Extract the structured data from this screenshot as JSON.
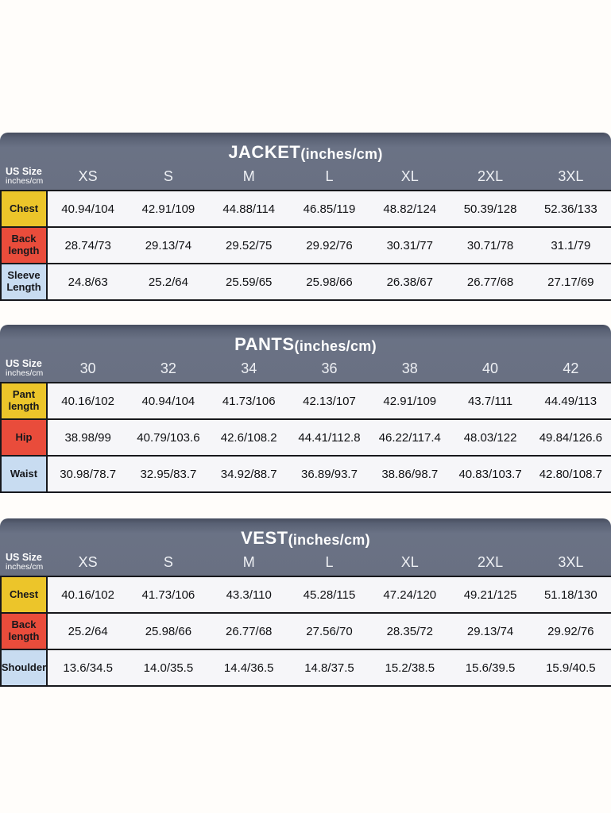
{
  "page": {
    "background": "#FFFDFA"
  },
  "palette": {
    "header_slate": "#6A7183",
    "header_rim": "#474E5F",
    "header_text": "#FFFFFF",
    "row_label_yellow": "#ECC52A",
    "row_label_red": "#E94C3B",
    "row_label_blue": "#C8DCF1",
    "cell_background": "#F6F6F9",
    "grid_line": "#17181C",
    "cell_text": "#101114"
  },
  "tables": [
    {
      "name": "jacket",
      "title": "JACKET",
      "title_suffix": "(inches/cm)",
      "corner": {
        "line1": "US Size",
        "line2": "inches/cm"
      },
      "sizes": [
        "XS",
        "S",
        "M",
        "L",
        "XL",
        "2XL",
        "3XL"
      ],
      "rows": [
        {
          "label": "Chest",
          "color": "yellow",
          "values": [
            "40.94/104",
            "42.91/109",
            "44.88/114",
            "46.85/119",
            "48.82/124",
            "50.39/128",
            "52.36/133"
          ]
        },
        {
          "label": "Back length",
          "color": "red",
          "values": [
            "28.74/73",
            "29.13/74",
            "29.52/75",
            "29.92/76",
            "30.31/77",
            "30.71/78",
            "31.1/79"
          ]
        },
        {
          "label": "Sleeve Length",
          "color": "blue",
          "values": [
            "24.8/63",
            "25.2/64",
            "25.59/65",
            "25.98/66",
            "26.38/67",
            "26.77/68",
            "27.17/69"
          ]
        }
      ]
    },
    {
      "name": "pants",
      "title": "PANTS",
      "title_suffix": "(inches/cm)",
      "corner": {
        "line1": "US Size",
        "line2": "inches/cm"
      },
      "sizes": [
        "30",
        "32",
        "34",
        "36",
        "38",
        "40",
        "42"
      ],
      "rows": [
        {
          "label": "Pant length",
          "color": "yellow",
          "values": [
            "40.16/102",
            "40.94/104",
            "41.73/106",
            "42.13/107",
            "42.91/109",
            "43.7/111",
            "44.49/113"
          ]
        },
        {
          "label": "Hip",
          "color": "red",
          "values": [
            "38.98/99",
            "40.79/103.6",
            "42.6/108.2",
            "44.41/112.8",
            "46.22/117.4",
            "48.03/122",
            "49.84/126.6"
          ]
        },
        {
          "label": "Waist",
          "color": "blue",
          "values": [
            "30.98/78.7",
            "32.95/83.7",
            "34.92/88.7",
            "36.89/93.7",
            "38.86/98.7",
            "40.83/103.7",
            "42.80/108.7"
          ]
        }
      ]
    },
    {
      "name": "vest",
      "title": "VEST",
      "title_suffix": "(inches/cm)",
      "corner": {
        "line1": "US Size",
        "line2": "inches/cm"
      },
      "sizes": [
        "XS",
        "S",
        "M",
        "L",
        "XL",
        "2XL",
        "3XL"
      ],
      "rows": [
        {
          "label": "Chest",
          "color": "yellow",
          "values": [
            "40.16/102",
            "41.73/106",
            "43.3/110",
            "45.28/115",
            "47.24/120",
            "49.21/125",
            "51.18/130"
          ]
        },
        {
          "label": "Back length",
          "color": "red",
          "values": [
            "25.2/64",
            "25.98/66",
            "26.77/68",
            "27.56/70",
            "28.35/72",
            "29.13/74",
            "29.92/76"
          ]
        },
        {
          "label": "Shoulder",
          "color": "blue",
          "values": [
            "13.6/34.5",
            "14.0/35.5",
            "14.4/36.5",
            "14.8/37.5",
            "15.2/38.5",
            "15.6/39.5",
            "15.9/40.5"
          ]
        }
      ]
    }
  ]
}
